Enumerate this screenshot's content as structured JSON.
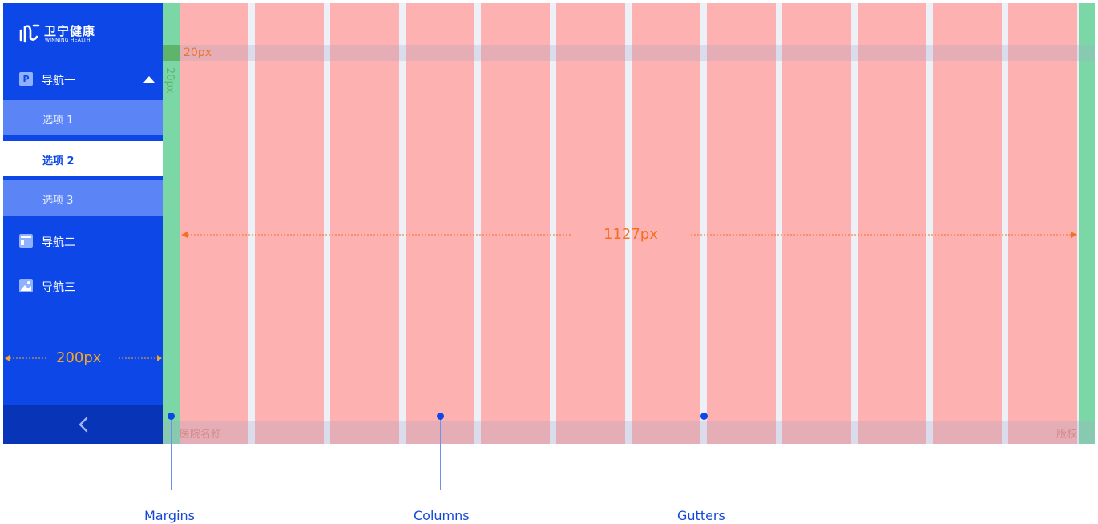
{
  "sidebar": {
    "brand_name": "卫宁健康",
    "brand_sub": "WINNING HEALTH",
    "nav_1": {
      "icon": "P",
      "label": "导航一"
    },
    "sub_items": [
      "选项 1",
      "选项 2",
      "选项 3"
    ],
    "active_sub": "选项 2",
    "nav_2": {
      "label": "导航二"
    },
    "nav_3": {
      "label": "导航三"
    },
    "width_label": "200px"
  },
  "grid": {
    "width_label": "1127px",
    "margin_label": "20px",
    "margin_vertical_label": "20px",
    "column_count": 12,
    "footer_left": "医院名称",
    "footer_right": "版权"
  },
  "callouts": {
    "margins": "Margins",
    "columns": "Columns",
    "gutters": "Gutters"
  },
  "colors": {
    "sidebar": "#0d47e8",
    "column": "#fdb1b1",
    "margin": "#7cd7a6",
    "measure": "#f36f22"
  }
}
